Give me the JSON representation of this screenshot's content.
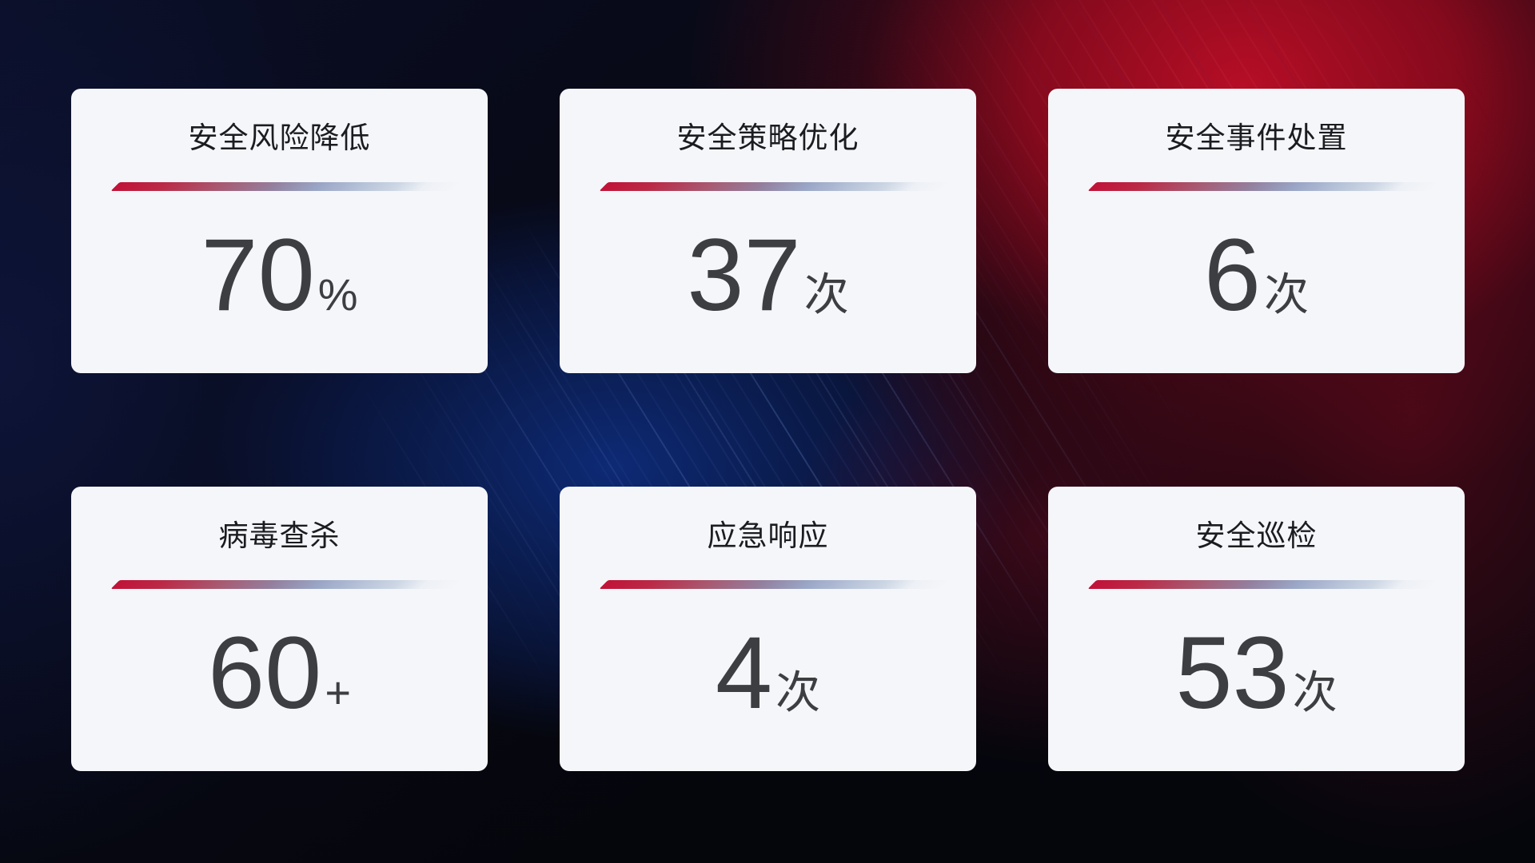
{
  "cards": [
    {
      "title": "安全风险降低",
      "value": "70",
      "unit": "%"
    },
    {
      "title": "安全策略优化",
      "value": "37",
      "unit": "次"
    },
    {
      "title": "安全事件处置",
      "value": "6",
      "unit": "次"
    },
    {
      "title": "病毒查杀",
      "value": "60",
      "unit": "+"
    },
    {
      "title": "应急响应",
      "value": "4",
      "unit": "次"
    },
    {
      "title": "安全巡检",
      "value": "53",
      "unit": "次"
    }
  ],
  "theme": {
    "card_background": "#f5f6f9",
    "title_color": "#1b1c20",
    "value_color": "#3d3e42",
    "divider_red": "#c11238",
    "divider_blue": "#b6c2d8",
    "background_dark": "#06070e",
    "background_red": "#b90e26",
    "background_blue": "#0e2c78"
  }
}
